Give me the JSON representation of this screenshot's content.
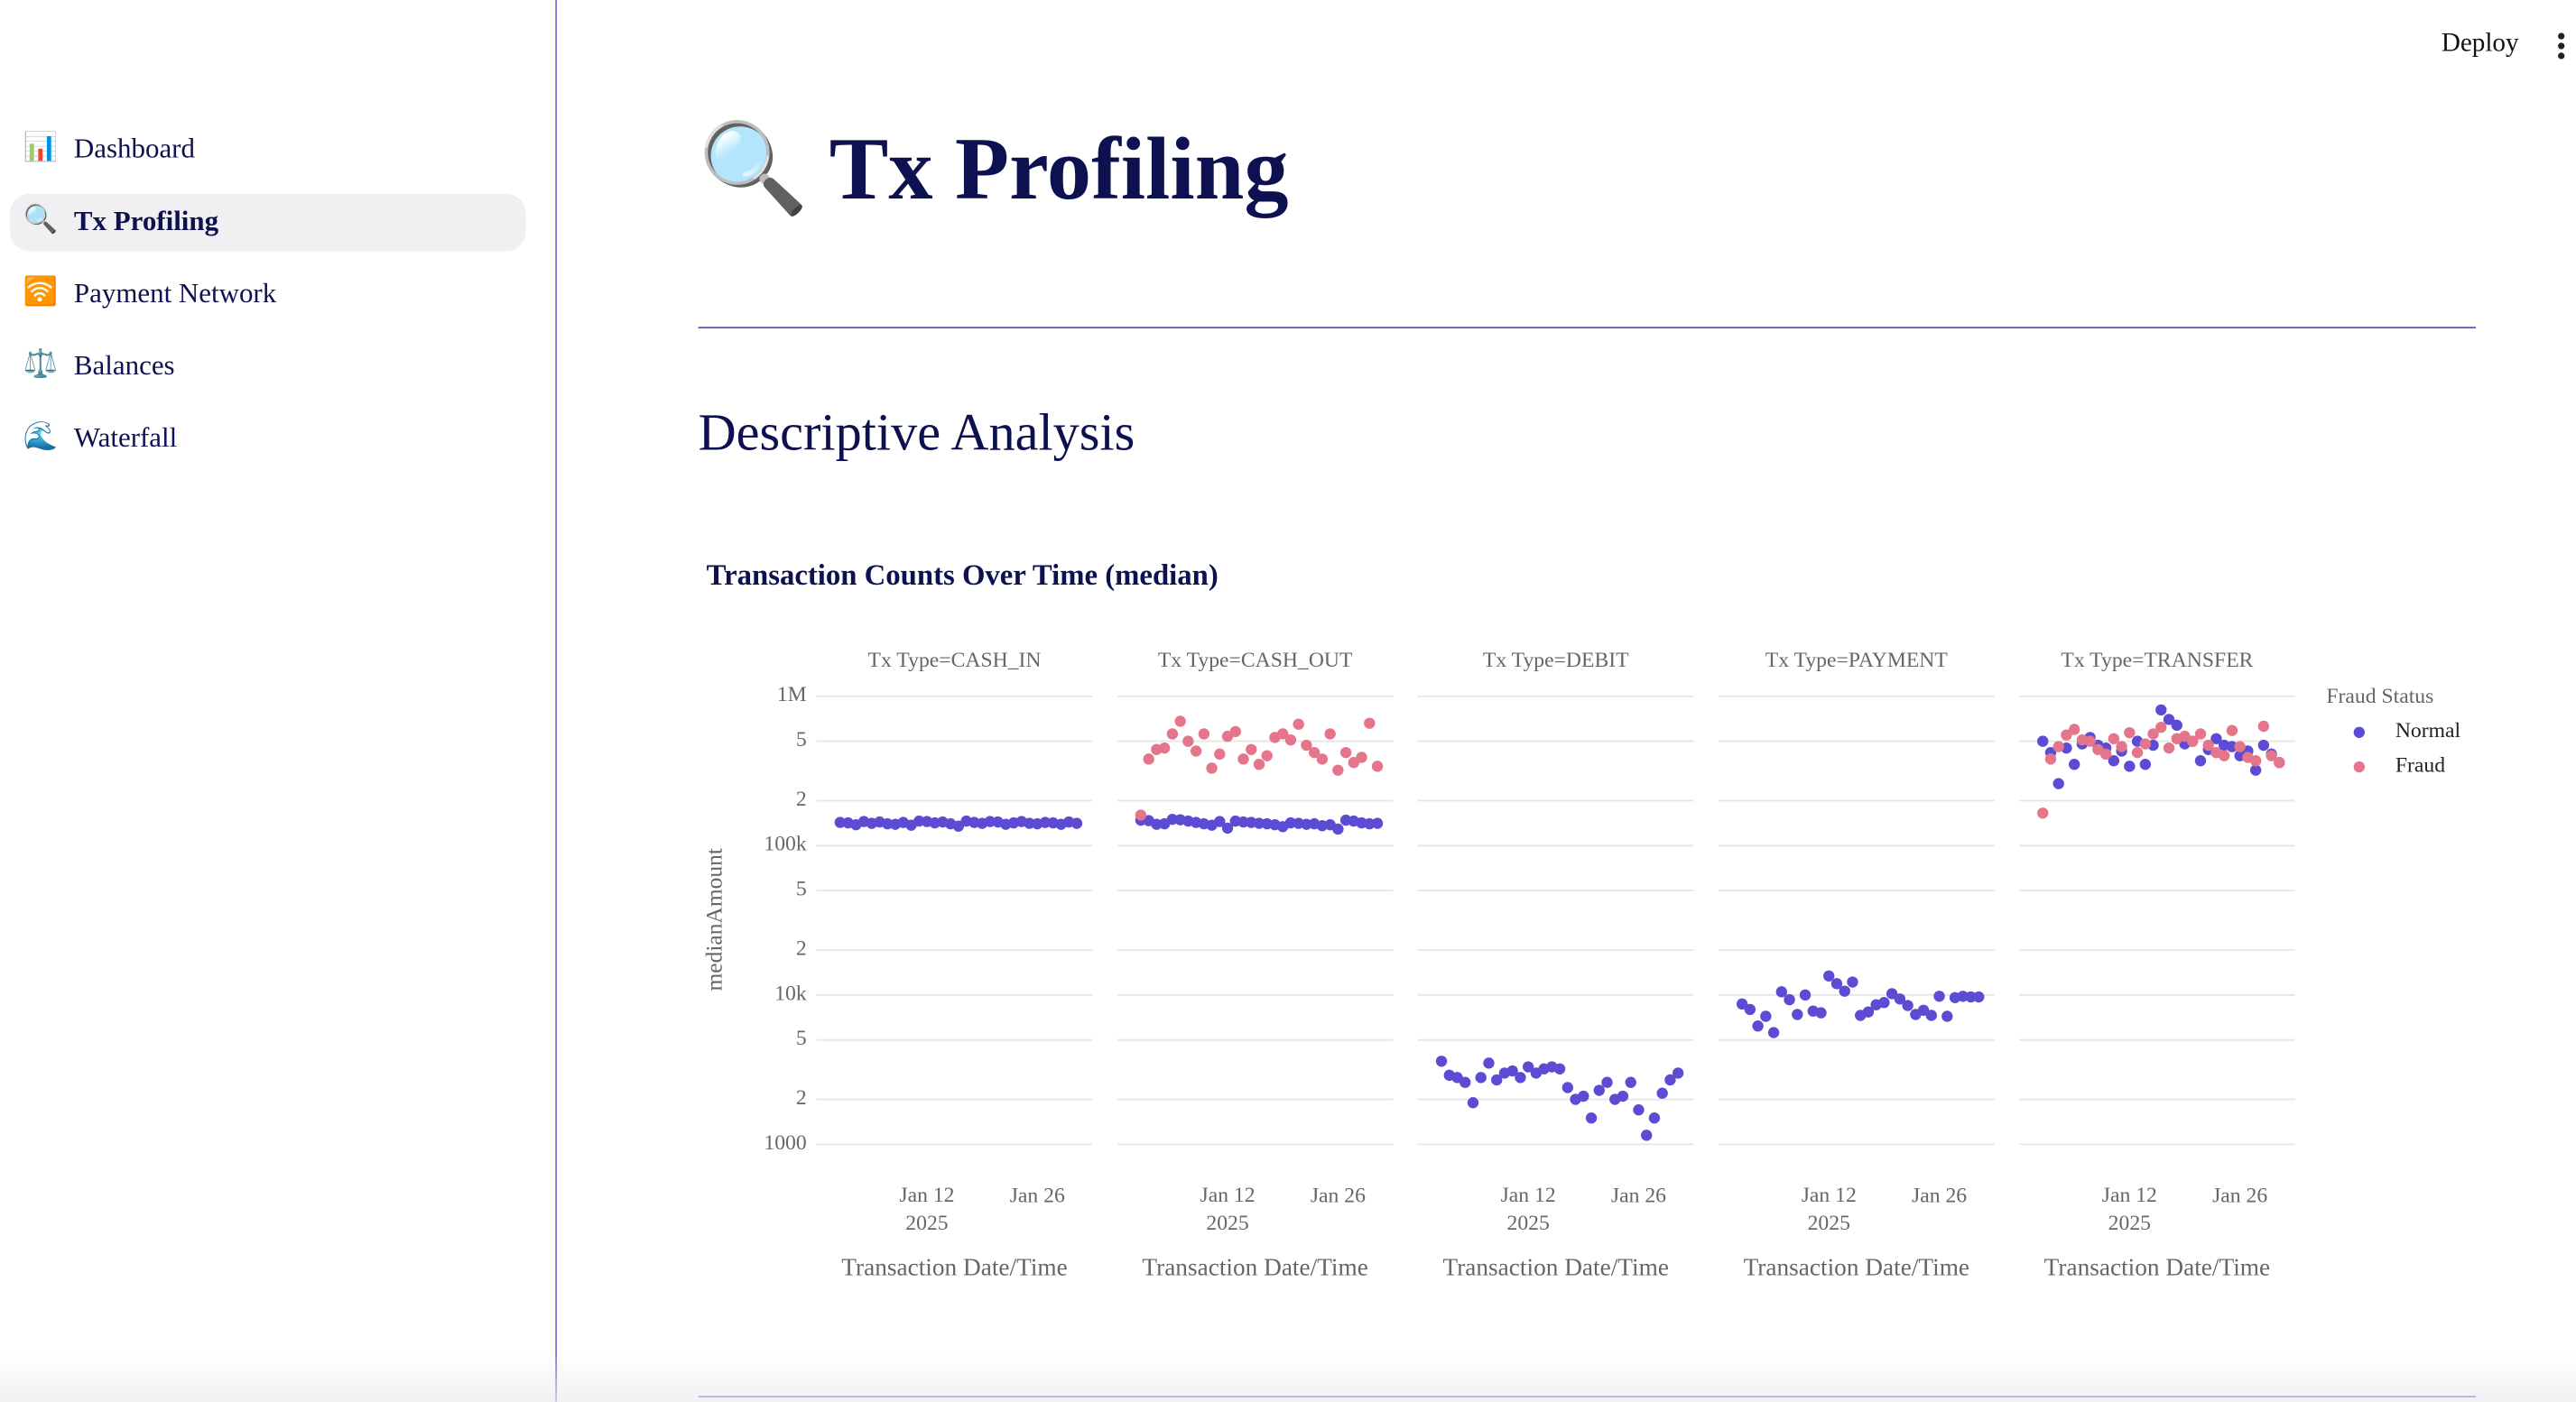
{
  "deploy": "Deploy",
  "nav": [
    {
      "icon": "📊",
      "label": "Dashboard"
    },
    {
      "icon": "🔍",
      "label": "Tx Profiling"
    },
    {
      "icon": "🛜",
      "label": "Payment Network"
    },
    {
      "icon": "⚖️",
      "label": "Balances"
    },
    {
      "icon": "🌊",
      "label": "Waterfall"
    }
  ],
  "header": {
    "title": "🔍 Tx Profiling"
  },
  "section": "Descriptive Analysis",
  "chart_data": {
    "type": "scatter",
    "title": "Transaction Counts Over Time (median)",
    "facets": [
      "Tx Type=CASH_IN",
      "Tx Type=CASH_OUT",
      "Tx Type=DEBIT",
      "Tx Type=PAYMENT",
      "Tx Type=TRANSFER"
    ],
    "x_label": "Transaction Date/Time",
    "y_label": "medianAmount",
    "legend_title": "Fraud Status",
    "log_y": true,
    "grid": true,
    "xlim": [
      "2024-12-29",
      "2025-02-02"
    ],
    "xticks": [
      {
        "value": "2025-01-12",
        "label": "Jan 12\n2025"
      },
      {
        "value": "2025-01-26",
        "label": "Jan 26"
      }
    ],
    "ylim": [
      900,
      1000000
    ],
    "yticks": [
      {
        "value": 1000000,
        "label": "1M"
      },
      {
        "value": 500000,
        "label": "5"
      },
      {
        "value": 200000,
        "label": "2"
      },
      {
        "value": 100000,
        "label": "100k"
      },
      {
        "value": 50000,
        "label": "5"
      },
      {
        "value": 20000,
        "label": "2"
      },
      {
        "value": 10000,
        "label": "10k"
      },
      {
        "value": 5000,
        "label": "5"
      },
      {
        "value": 2000,
        "label": "2"
      },
      1000
    ],
    "x": [
      "2025-01-01",
      "2025-01-02",
      "2025-01-03",
      "2025-01-04",
      "2025-01-05",
      "2025-01-06",
      "2025-01-07",
      "2025-01-08",
      "2025-01-09",
      "2025-01-10",
      "2025-01-11",
      "2025-01-12",
      "2025-01-13",
      "2025-01-14",
      "2025-01-15",
      "2025-01-16",
      "2025-01-17",
      "2025-01-18",
      "2025-01-19",
      "2025-01-20",
      "2025-01-21",
      "2025-01-22",
      "2025-01-23",
      "2025-01-24",
      "2025-01-25",
      "2025-01-26",
      "2025-01-27",
      "2025-01-28",
      "2025-01-29",
      "2025-01-30",
      "2025-01-31"
    ],
    "series": [
      {
        "name": "Normal",
        "color": "#5b4cd3",
        "values": [
          [
            143000,
            142000,
            138000,
            145000,
            141000,
            144000,
            140000,
            139000,
            143000,
            137000,
            146000,
            145000,
            142000,
            144000,
            140000,
            135000,
            146000,
            143000,
            141000,
            145000,
            144000,
            139000,
            142000,
            145000,
            141000,
            140000,
            143000,
            142000,
            139000,
            144000,
            141000
          ],
          [
            148000,
            147000,
            139000,
            140000,
            150000,
            149000,
            146000,
            143000,
            140000,
            137000,
            145000,
            131000,
            146000,
            144000,
            143000,
            141000,
            140000,
            138000,
            134000,
            142000,
            141000,
            139000,
            140000,
            136000,
            138000,
            129000,
            148000,
            146000,
            142000,
            140000,
            141000
          ],
          [
            3600,
            2900,
            2800,
            2600,
            1900,
            2800,
            3500,
            2700,
            3000,
            3100,
            2800,
            3300,
            3000,
            3200,
            3300,
            3200,
            2400,
            2000,
            2100,
            1500,
            2300,
            2600,
            2000,
            2100,
            2600,
            1700,
            1150,
            1500,
            2200,
            2700,
            3000
          ],
          [
            8700,
            8000,
            6200,
            7200,
            5600,
            10500,
            9300,
            7400,
            10000,
            7800,
            7600,
            13400,
            11900,
            10600,
            12200,
            7300,
            7700,
            8600,
            8900,
            10200,
            9400,
            8500,
            7400,
            7900,
            7300,
            9800,
            7200,
            9600,
            9800,
            9700,
            9700
          ],
          [
            500000,
            420000,
            260000,
            450000,
            350000,
            480000,
            530000,
            470000,
            450000,
            370000,
            430000,
            340000,
            500000,
            350000,
            470000,
            810000,
            700000,
            640000,
            480000,
            500000,
            370000,
            440000,
            520000,
            470000,
            460000,
            400000,
            430000,
            320000,
            470000,
            410000,
            360000
          ]
        ]
      },
      {
        "name": "Fraud",
        "color": "#e4758a",
        "values": [
          null,
          [
            160000,
            380000,
            440000,
            450000,
            560000,
            680000,
            500000,
            430000,
            560000,
            330000,
            410000,
            540000,
            580000,
            380000,
            440000,
            350000,
            400000,
            530000,
            560000,
            510000,
            650000,
            470000,
            420000,
            380000,
            560000,
            320000,
            420000,
            360000,
            390000,
            660000,
            340000
          ],
          null,
          null,
          [
            165000,
            380000,
            460000,
            550000,
            600000,
            510000,
            500000,
            440000,
            410000,
            520000,
            460000,
            570000,
            420000,
            480000,
            560000,
            620000,
            450000,
            520000,
            540000,
            500000,
            560000,
            470000,
            420000,
            400000,
            590000,
            460000,
            390000,
            370000,
            630000,
            400000,
            360000
          ]
        ]
      }
    ]
  }
}
